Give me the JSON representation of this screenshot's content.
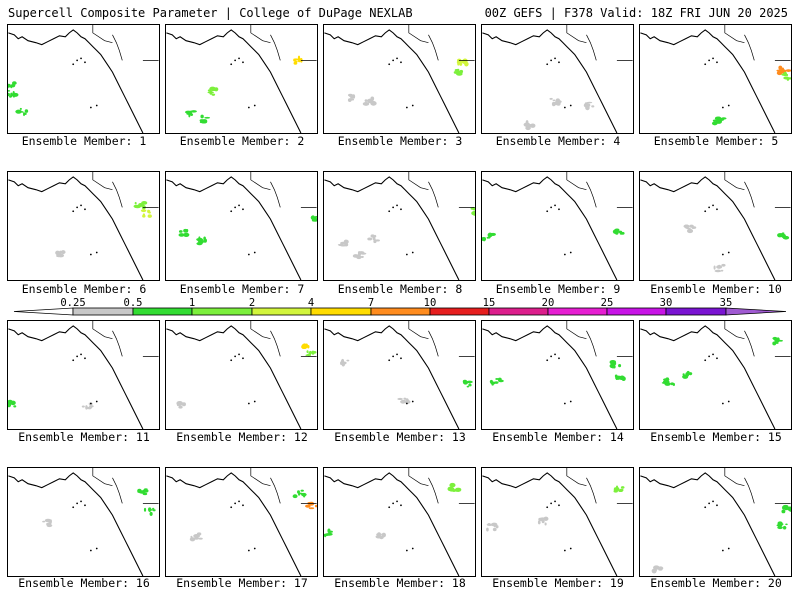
{
  "header": {
    "left_title": "Supercell Composite Parameter | College of DuPage NEXLAB",
    "right_title": "00Z GEFS | F378 Valid: 18Z FRI JUN 20 2025"
  },
  "panel_label_prefix": "Ensemble Member: ",
  "members": [
    1,
    2,
    3,
    4,
    5,
    6,
    7,
    8,
    9,
    10,
    11,
    12,
    13,
    14,
    15,
    16,
    17,
    18,
    19,
    20
  ],
  "colorbar": {
    "levels": [
      "0.25",
      "0.5",
      "1",
      "2",
      "4",
      "7",
      "10",
      "15",
      "20",
      "25",
      "30",
      "35"
    ],
    "colors": [
      "#c8c8c8",
      "#32dc32",
      "#7cf03c",
      "#d2f53c",
      "#ffdc00",
      "#ff8c1e",
      "#e61e1e",
      "#dc1e8c",
      "#e61ed2",
      "#c814e6",
      "#7a14d2",
      "#a05ad2",
      "#3cd2dc"
    ]
  }
}
